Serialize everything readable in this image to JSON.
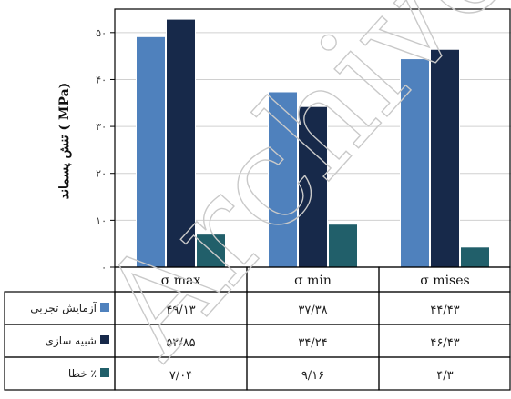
{
  "chart_data": {
    "type": "bar",
    "ylabel": "تنش پسماند ( MPa)",
    "ylim": [
      0,
      55
    ],
    "yticks": [
      "۰",
      "۱۰",
      "۲۰",
      "۳۰",
      "۴۰",
      "۵۰"
    ],
    "ytick_values": [
      0,
      10,
      20,
      30,
      40,
      50
    ],
    "grid": true,
    "categories": [
      "σ max",
      "σ min",
      "σ mises"
    ],
    "series": [
      {
        "name": "آزمایش تجربی",
        "color": "#4f81bd",
        "values": [
          49.13,
          37.38,
          44.43
        ],
        "labels": [
          "۴۹/۱۳",
          "۳۷/۳۸",
          "۴۴/۴۳"
        ]
      },
      {
        "name": "شبیه سازی",
        "color": "#17294a",
        "values": [
          52.85,
          34.24,
          46.43
        ],
        "labels": [
          "۵۲/۸۵",
          "۳۴/۲۴",
          "۴۶/۴۳"
        ]
      },
      {
        "name": "خطا ٪",
        "color": "#215f6a",
        "values": [
          7.04,
          9.16,
          4.3
        ],
        "labels": [
          "۷/۰۴",
          "۹/۱۶",
          "۴/۳"
        ]
      }
    ],
    "legend": "data-table-left",
    "watermark": "Archive"
  }
}
